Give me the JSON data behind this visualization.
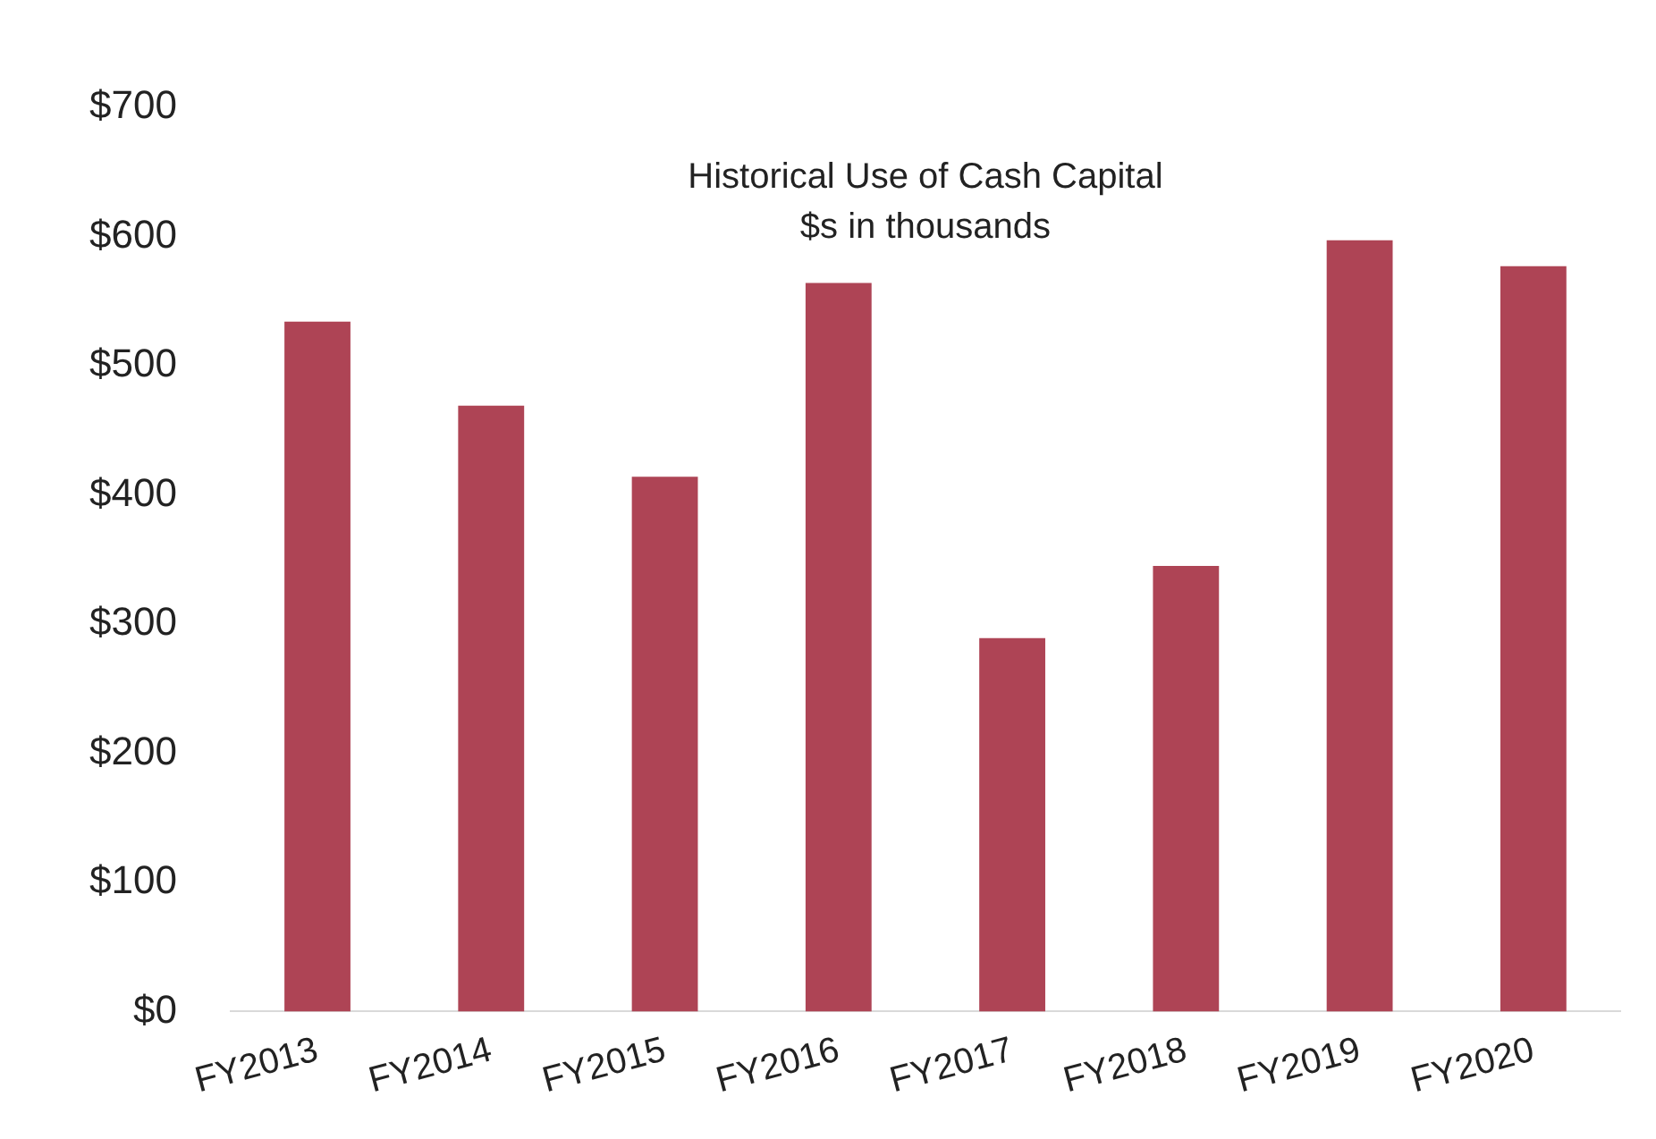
{
  "chart_data": {
    "type": "bar",
    "title": "Historical Use of Cash Capital",
    "subtitle": "$s in thousands",
    "categories": [
      "FY2013",
      "FY2014",
      "FY2015",
      "FY2016",
      "FY2017",
      "FY2018",
      "FY2019",
      "FY2020"
    ],
    "values": [
      534,
      469,
      414,
      564,
      289,
      345,
      597,
      577
    ],
    "color": "#ae4455",
    "ylim": [
      0,
      700
    ],
    "yticks": [
      {
        "value": 0,
        "label": "$0"
      },
      {
        "value": 100,
        "label": "$100"
      },
      {
        "value": 200,
        "label": "$200"
      },
      {
        "value": 300,
        "label": "$300"
      },
      {
        "value": 400,
        "label": "$400"
      },
      {
        "value": 500,
        "label": "$500"
      },
      {
        "value": 600,
        "label": "$600"
      },
      {
        "value": 700,
        "label": "$700"
      }
    ],
    "grid": false,
    "legend": false
  }
}
